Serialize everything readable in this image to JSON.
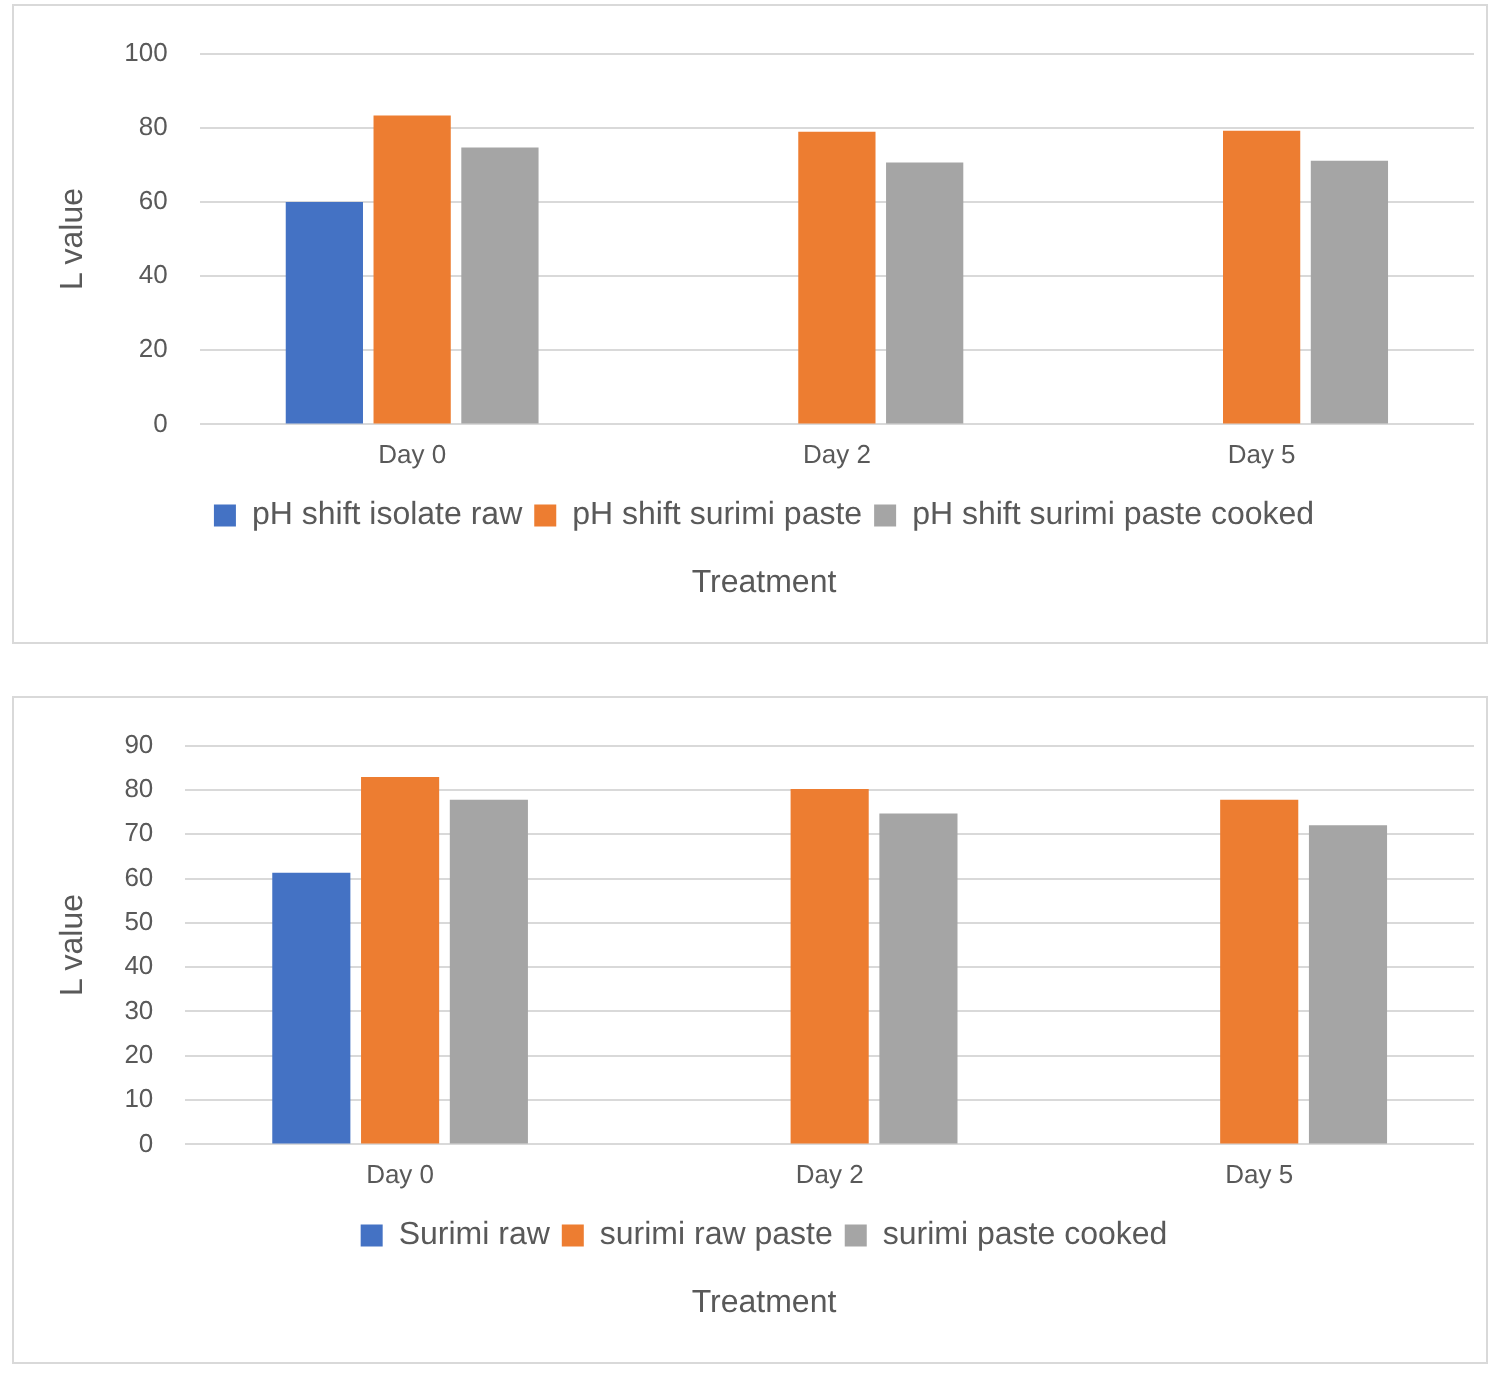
{
  "chart_data": [
    {
      "type": "bar",
      "xlabel": "Treatment",
      "ylabel": "L value",
      "categories": [
        "Day 0",
        "Day 2",
        "Day 5"
      ],
      "series": [
        {
          "name": "pH shift isolate raw",
          "color": "#4472c4",
          "values": [
            60,
            null,
            null
          ]
        },
        {
          "name": "pH shift surimi paste",
          "color": "#ed7d31",
          "values": [
            83.3,
            78.9,
            79.2
          ]
        },
        {
          "name": "pH shift surimi paste cooked",
          "color": "#a5a5a5",
          "values": [
            74.7,
            70.6,
            71.1
          ]
        }
      ],
      "ylim": [
        0,
        100
      ],
      "yticks": [
        0,
        20,
        40,
        60,
        80,
        100
      ],
      "grid": "y",
      "legend": "bottom"
    },
    {
      "type": "bar",
      "xlabel": "Treatment",
      "ylabel": "L value",
      "categories": [
        "Day 0",
        "Day 2",
        "Day 5"
      ],
      "series": [
        {
          "name": "Surimi raw",
          "color": "#4472c4",
          "values": [
            61.3,
            null,
            null
          ]
        },
        {
          "name": "surimi raw paste",
          "color": "#ed7d31",
          "values": [
            82.9,
            80.2,
            77.8
          ]
        },
        {
          "name": "surimi paste cooked",
          "color": "#a5a5a5",
          "values": [
            77.8,
            74.7,
            72
          ]
        }
      ],
      "ylim": [
        0,
        90
      ],
      "yticks": [
        0,
        10,
        20,
        30,
        40,
        50,
        60,
        70,
        80,
        90
      ],
      "grid": "y",
      "legend": "bottom"
    }
  ]
}
